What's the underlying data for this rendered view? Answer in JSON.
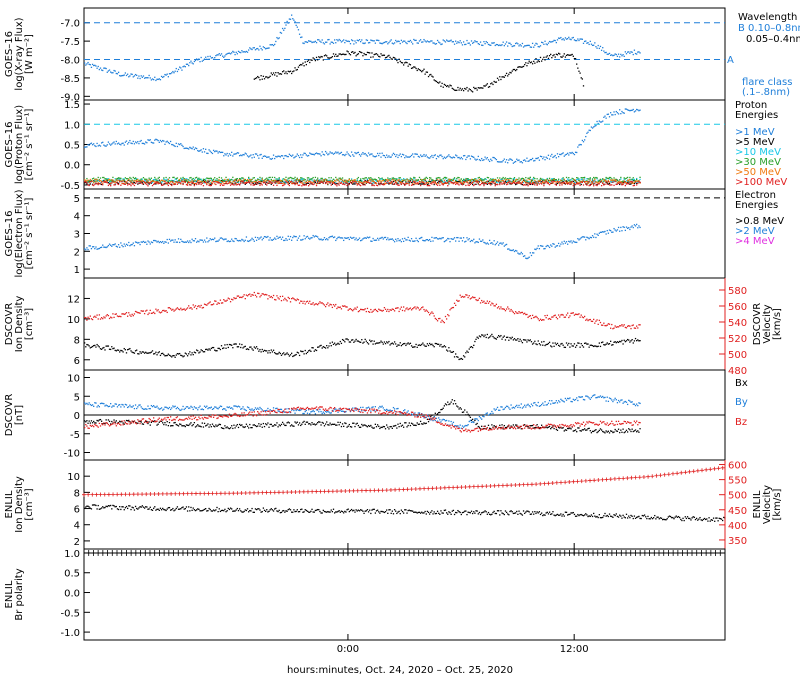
{
  "colors": {
    "black": "#000000",
    "blue": "#1f7fd9",
    "cyan": "#19c8e6",
    "green": "#2aa02a",
    "yellow": "#d8c200",
    "orange": "#f07a10",
    "red": "#e02020",
    "magenta": "#e030e0"
  },
  "time_axis": {
    "ticks": [
      "0:00",
      "12:00"
    ],
    "label": "hours:minutes, Oct. 24, 2020 – Oct. 25, 2020"
  },
  "panels": {
    "xray": {
      "ylabel": [
        "GOES–16",
        "log(X-ray Flux)",
        "[W m⁻²]"
      ],
      "ticks": [
        "-7.0",
        "-7.5",
        "-8.0",
        "-8.5",
        "-9.0"
      ],
      "legend_title": "Wavelength",
      "legend": [
        {
          "label": "B 0.10–0.8nm",
          "color": "blue"
        },
        {
          "label": "0.05–0.4nm",
          "color": "black"
        }
      ],
      "class_B": "B",
      "class_A": "A",
      "flare_class": [
        "flare class",
        "(.1–.8nm)"
      ]
    },
    "proton": {
      "ylabel": [
        "GOES–16",
        "log(Proton Flux)",
        "[cm⁻² s⁻¹ sr⁻¹]"
      ],
      "ticks": [
        "1.5",
        "1.0",
        "0.5",
        "0.0",
        "-0.5"
      ],
      "legend_title": [
        "Proton",
        "Energies"
      ],
      "legend": [
        {
          "label": ">1 MeV",
          "color": "blue"
        },
        {
          "label": ">5 MeV",
          "color": "black"
        },
        {
          "label": ">10 MeV",
          "color": "cyan"
        },
        {
          "label": ">30 MeV",
          "color": "green"
        },
        {
          "label": ">50 MeV",
          "color": "orange"
        },
        {
          "label": ">100 MeV",
          "color": "red"
        }
      ]
    },
    "electron": {
      "ylabel": [
        "GOES–16",
        "log(Electron Flux)",
        "[cm⁻² s⁻¹ sr⁻¹]"
      ],
      "ticks": [
        "5",
        "4",
        "3",
        "2",
        "1"
      ],
      "legend_title": [
        "Electron",
        "Energies"
      ],
      "legend": [
        {
          "label": ">0.8 MeV",
          "color": "black"
        },
        {
          "label": ">2 MeV",
          "color": "blue"
        },
        {
          "label": ">4 MeV",
          "color": "magenta"
        }
      ]
    },
    "density": {
      "ylabel": [
        "DSCOVR",
        "Ion Density",
        "[cm⁻³]"
      ],
      "ticks": [
        "12",
        "10",
        "8",
        "6"
      ],
      "right_ylabel": [
        "DSCOVR",
        "Velocity",
        "[km/s]"
      ],
      "right_ticks": [
        "580",
        "560",
        "540",
        "520",
        "500",
        "480"
      ]
    },
    "bfield": {
      "ylabel": [
        "DSCOVR",
        "[nT]"
      ],
      "ticks": [
        "10",
        "5",
        "0",
        "-5",
        "-10"
      ],
      "legend": [
        {
          "label": "Bx",
          "color": "black"
        },
        {
          "label": "By",
          "color": "blue"
        },
        {
          "label": "Bz",
          "color": "red"
        }
      ]
    },
    "enlil": {
      "ylabel": [
        "ENLIL",
        "Ion Density",
        "[cm⁻³]"
      ],
      "ticks": [
        "10",
        "8",
        "6",
        "4",
        "2"
      ],
      "right_ylabel": [
        "ENLIL",
        "Velocity",
        "[km/s]"
      ],
      "right_ticks": [
        "600",
        "550",
        "500",
        "450",
        "400",
        "350"
      ]
    },
    "polarity": {
      "ylabel": [
        "ENLIL",
        "Br polarity"
      ],
      "ticks": [
        "1.0",
        "0.5",
        "0.0",
        "-0.5",
        "-1.0"
      ]
    }
  },
  "chart_data": {
    "type": "scatter",
    "x_axis": {
      "unit": "hours from 00:00 Oct 24, 2020",
      "xlim": [
        -14,
        20
      ],
      "ticks": [
        "0:00",
        "12:00"
      ]
    },
    "panels": [
      {
        "name": "xray",
        "ylim": [
          -9.1,
          -6.6
        ],
        "reference_lines": [
          {
            "y": -7.0,
            "label": "B"
          },
          {
            "y": -8.0,
            "label": "A"
          }
        ],
        "series": [
          {
            "name": "0.10–0.8nm",
            "color": "blue",
            "kind": "dots",
            "points": [
              [
                -14,
                -8.1
              ],
              [
                -12,
                -8.4
              ],
              [
                -10,
                -8.5
              ],
              [
                -8,
                -8.0
              ],
              [
                -6,
                -7.8
              ],
              [
                -4,
                -7.6
              ],
              [
                -3,
                -6.8
              ],
              [
                -2.4,
                -7.5
              ],
              [
                0,
                -7.5
              ],
              [
                4,
                -7.5
              ],
              [
                8,
                -7.55
              ],
              [
                10,
                -7.6
              ],
              [
                11.5,
                -7.4
              ],
              [
                13,
                -7.55
              ],
              [
                14,
                -7.9
              ],
              [
                15.5,
                -7.75
              ]
            ]
          },
          {
            "name": "0.05–0.4nm",
            "color": "black",
            "kind": "dots",
            "points": [
              [
                -5,
                -8.5
              ],
              [
                -3,
                -8.3
              ],
              [
                -2,
                -8.0
              ],
              [
                0,
                -7.8
              ],
              [
                2,
                -7.9
              ],
              [
                4,
                -8.3
              ],
              [
                5,
                -8.7
              ],
              [
                6,
                -8.8
              ],
              [
                7,
                -8.8
              ],
              [
                8,
                -8.5
              ],
              [
                9,
                -8.2
              ],
              [
                10,
                -8.0
              ],
              [
                11,
                -7.85
              ],
              [
                12,
                -7.9
              ],
              [
                12.5,
                -8.7
              ]
            ]
          }
        ]
      },
      {
        "name": "proton",
        "ylim": [
          -0.6,
          1.6
        ],
        "reference_lines": [
          {
            "y": 1.0
          }
        ],
        "series": [
          {
            "name": ">1 MeV",
            "color": "blue",
            "kind": "dots",
            "points": [
              [
                -14,
                0.5
              ],
              [
                -10,
                0.6
              ],
              [
                -7,
                0.3
              ],
              [
                -4,
                0.2
              ],
              [
                -1,
                0.3
              ],
              [
                2,
                0.25
              ],
              [
                6,
                0.2
              ],
              [
                9,
                0.1
              ],
              [
                12,
                0.3
              ],
              [
                13,
                1.0
              ],
              [
                14,
                1.3
              ],
              [
                15.5,
                1.4
              ]
            ]
          },
          {
            "name": ">5 MeV",
            "color": "black",
            "kind": "dots",
            "points": [
              [
                -14,
                -0.42
              ],
              [
                15.5,
                -0.42
              ]
            ]
          },
          {
            "name": ">10 MeV",
            "color": "cyan",
            "kind": "dots",
            "points": [
              [
                -14,
                -0.38
              ],
              [
                15.5,
                -0.38
              ]
            ]
          },
          {
            "name": ">30 MeV",
            "color": "green",
            "kind": "dots",
            "points": [
              [
                -14,
                -0.35
              ],
              [
                15.5,
                -0.35
              ]
            ]
          },
          {
            "name": ">50 MeV",
            "color": "orange",
            "kind": "dots",
            "points": [
              [
                -14,
                -0.4
              ],
              [
                15.5,
                -0.4
              ]
            ]
          },
          {
            "name": ">100 MeV",
            "color": "red",
            "kind": "dots",
            "points": [
              [
                -14,
                -0.45
              ],
              [
                15.5,
                -0.45
              ]
            ]
          }
        ]
      },
      {
        "name": "electron",
        "ylim": [
          0.5,
          5.5
        ],
        "reference_lines": [
          {
            "y": 5.0
          }
        ],
        "series": [
          {
            "name": ">2 MeV",
            "color": "blue",
            "kind": "dots",
            "points": [
              [
                -14,
                2.2
              ],
              [
                -10,
                2.6
              ],
              [
                -6,
                2.7
              ],
              [
                -2,
                2.8
              ],
              [
                2,
                2.7
              ],
              [
                6,
                2.7
              ],
              [
                8,
                2.5
              ],
              [
                9.5,
                1.7
              ],
              [
                10,
                2.2
              ],
              [
                12,
                2.6
              ],
              [
                14,
                3.2
              ],
              [
                15.5,
                3.5
              ]
            ]
          }
        ]
      },
      {
        "name": "density_velocity",
        "ylim": [
          5.0,
          14.0
        ],
        "right_ylim": [
          480,
          595
        ],
        "series": [
          {
            "name": "Ion Density",
            "color": "black",
            "axis": "left",
            "kind": "dots",
            "points": [
              [
                -14,
                7.5
              ],
              [
                -12,
                7.0
              ],
              [
                -9,
                6.5
              ],
              [
                -6,
                7.5
              ],
              [
                -3,
                6.5
              ],
              [
                0,
                8.0
              ],
              [
                3,
                7.5
              ],
              [
                5,
                7.5
              ],
              [
                6,
                6.0
              ],
              [
                7,
                8.5
              ],
              [
                9,
                8.0
              ],
              [
                11,
                7.5
              ],
              [
                13,
                7.5
              ],
              [
                15.5,
                8.0
              ]
            ]
          },
          {
            "name": "Velocity",
            "color": "red",
            "axis": "right",
            "kind": "dots",
            "points": [
              [
                -14,
                545
              ],
              [
                -11,
                552
              ],
              [
                -8,
                560
              ],
              [
                -5,
                575
              ],
              [
                -2,
                565
              ],
              [
                1,
                555
              ],
              [
                4,
                558
              ],
              [
                5,
                540
              ],
              [
                6,
                575
              ],
              [
                8,
                560
              ],
              [
                10,
                545
              ],
              [
                12,
                550
              ],
              [
                14,
                535
              ],
              [
                15.5,
                535
              ]
            ]
          }
        ]
      },
      {
        "name": "bfield",
        "ylim": [
          -12,
          12
        ],
        "reference_lines": [
          {
            "y": 0
          }
        ],
        "series": [
          {
            "name": "Bx",
            "color": "black",
            "kind": "dots",
            "points": [
              [
                -14,
                -1.5
              ],
              [
                -10,
                -2
              ],
              [
                -6,
                -3
              ],
              [
                -2,
                -2
              ],
              [
                2,
                -3
              ],
              [
                4,
                -2
              ],
              [
                5.5,
                4
              ],
              [
                7,
                -3
              ],
              [
                10,
                -3
              ],
              [
                13,
                -4
              ],
              [
                15.5,
                -4
              ]
            ]
          },
          {
            "name": "By",
            "color": "blue",
            "kind": "dots",
            "points": [
              [
                -14,
                3
              ],
              [
                -10,
                2
              ],
              [
                -6,
                2
              ],
              [
                -2,
                1
              ],
              [
                2,
                2
              ],
              [
                4,
                0
              ],
              [
                6,
                -3
              ],
              [
                8,
                2
              ],
              [
                10,
                3
              ],
              [
                13,
                5
              ],
              [
                15.5,
                3
              ]
            ]
          },
          {
            "name": "Bz",
            "color": "red",
            "kind": "dots",
            "points": [
              [
                -14,
                -3
              ],
              [
                -10,
                -1
              ],
              [
                -6,
                0
              ],
              [
                -2,
                2
              ],
              [
                2,
                1
              ],
              [
                4,
                0
              ],
              [
                6,
                -4
              ],
              [
                8,
                -3
              ],
              [
                10,
                -3
              ],
              [
                13,
                -2
              ],
              [
                15.5,
                -2
              ]
            ]
          }
        ]
      },
      {
        "name": "enlil_density_velocity",
        "ylim": [
          1.0,
          12.0
        ],
        "right_ylim": [
          320,
          615
        ],
        "series": [
          {
            "name": "Ion Density",
            "color": "black",
            "axis": "left",
            "kind": "dots",
            "points": [
              [
                -14,
                6.3
              ],
              [
                -6,
                5.9
              ],
              [
                2,
                5.7
              ],
              [
                10,
                5.5
              ],
              [
                16,
                5.0
              ],
              [
                20,
                4.7
              ]
            ]
          },
          {
            "name": "Velocity",
            "color": "red",
            "axis": "right",
            "kind": "crosses",
            "points": [
              [
                -14,
                500
              ],
              [
                -6,
                505
              ],
              [
                2,
                515
              ],
              [
                10,
                535
              ],
              [
                16,
                560
              ],
              [
                20,
                590
              ]
            ]
          }
        ]
      },
      {
        "name": "br_polarity",
        "ylim": [
          -1.2,
          1.1
        ],
        "series": [
          {
            "name": "Br polarity",
            "color": "black",
            "kind": "ticks",
            "points": [
              [
                -14,
                1.0
              ],
              [
                20,
                1.0
              ]
            ]
          }
        ]
      }
    ]
  }
}
